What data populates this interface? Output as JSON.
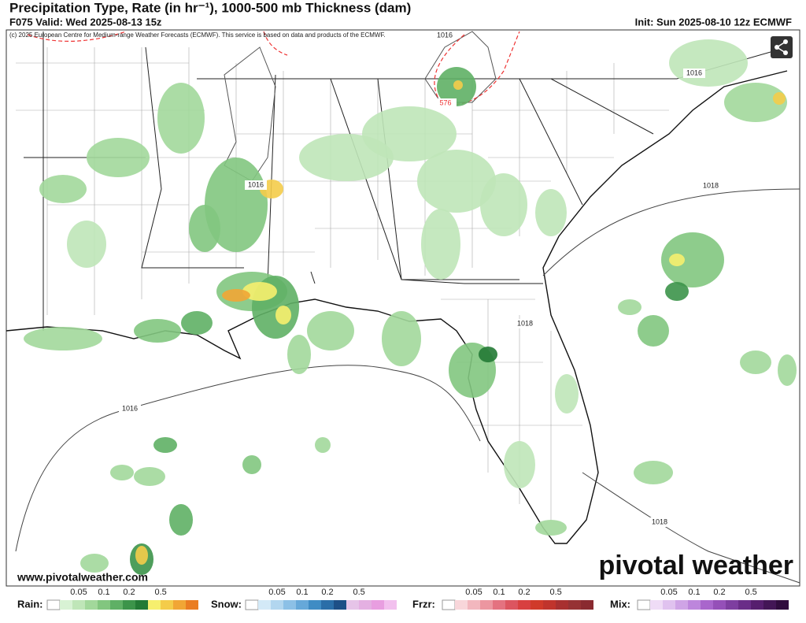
{
  "header": {
    "title": "Precipitation Type, Rate (in hr⁻¹), 1000-500 mb Thickness (dam)",
    "valid": "F075 Valid: Wed 2025-08-13 15z",
    "init": "Init: Sun 2025-08-10 12z ECMWF",
    "copyright": "(c) 2025 European Centre for Medium-range Weather Forecasts (ECMWF). This service is based on data and products of the ECMWF."
  },
  "map": {
    "contour_labels": [
      "1016",
      "1016",
      "1016",
      "1016",
      "1018",
      "1018",
      "1018",
      "576"
    ],
    "website": "www.pivotalweather.com",
    "logo": "pivotal weather"
  },
  "legend": [
    {
      "label": "Rain:",
      "ticks": [
        "0.05",
        "0.1",
        "0.2",
        "0.5"
      ],
      "colors": [
        "#ffffff",
        "#d8f2d4",
        "#bfe6b8",
        "#a2d89b",
        "#82c67f",
        "#5fb065",
        "#3c944a",
        "#237a35",
        "#f6ef6e",
        "#f4cc4a",
        "#f1a635",
        "#ea7d22"
      ]
    },
    {
      "label": "Snow:",
      "ticks": [
        "0.05",
        "0.1",
        "0.2",
        "0.5"
      ],
      "colors": [
        "#ffffff",
        "#d3e9f7",
        "#b2d6ef",
        "#8cc0e6",
        "#66a8d9",
        "#3f8cc4",
        "#2a6ea8",
        "#1d4f86",
        "#e6c4e8",
        "#e4b0e2",
        "#e89ee0",
        "#f2c0ee"
      ]
    },
    {
      "label": "Frzr:",
      "ticks": [
        "0.05",
        "0.1",
        "0.2",
        "0.5"
      ],
      "colors": [
        "#ffffff",
        "#f8d6da",
        "#f2b7be",
        "#ec96a0",
        "#e47280",
        "#dc5560",
        "#d84040",
        "#d03a2a",
        "#c0342c",
        "#a83030",
        "#963234",
        "#8a2a30"
      ]
    },
    {
      "label": "Mix:",
      "ticks": [
        "0.05",
        "0.1",
        "0.2",
        "0.5"
      ],
      "colors": [
        "#ffffff",
        "#efdcf6",
        "#e0c2ef",
        "#cfa4e6",
        "#bd86dc",
        "#a966cc",
        "#9550b8",
        "#7e3ea0",
        "#6a2d88",
        "#561f6e",
        "#431656",
        "#300c3e"
      ]
    }
  ]
}
